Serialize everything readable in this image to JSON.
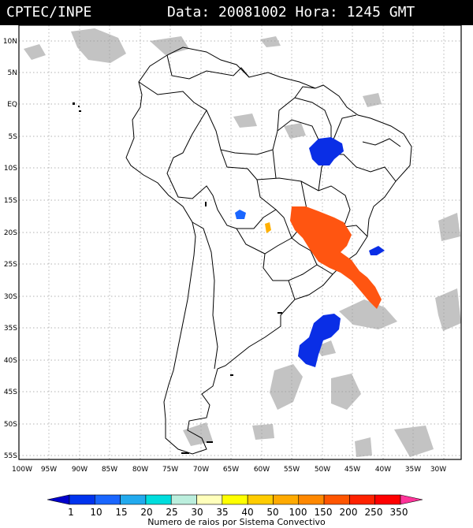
{
  "header": {
    "source": "CPTEC/INPE",
    "datetime": "Data: 20081002 Hora: 1245 GMT"
  },
  "map": {
    "lat_labels": [
      "10N",
      "5N",
      "EQ",
      "5S",
      "10S",
      "15S",
      "20S",
      "25S",
      "30S",
      "35S",
      "40S",
      "45S",
      "50S",
      "55S"
    ],
    "lon_labels": [
      "100W",
      "95W",
      "90W",
      "85W",
      "80W",
      "75W",
      "70W",
      "65W",
      "60W",
      "55W",
      "50W",
      "45W",
      "40W",
      "35W",
      "30W"
    ]
  },
  "legend": {
    "title": "Numero de raios por Sistema Convectivo",
    "ticks": [
      "1",
      "10",
      "15",
      "20",
      "25",
      "30",
      "35",
      "40",
      "50",
      "100",
      "150",
      "200",
      "250",
      "350"
    ],
    "colors": [
      "#0000cc",
      "#0033ee",
      "#1a66ff",
      "#22aaee",
      "#00dddd",
      "#bbeedd",
      "#ffffbb",
      "#ffff00",
      "#ffcc00",
      "#ffaa00",
      "#ff8800",
      "#ff5500",
      "#ff2200",
      "#ff0000",
      "#ff3399"
    ]
  },
  "colors": {
    "clouds": "#c3c3c3",
    "low_activity": "#0a2ee6",
    "high_activity": "#ff5511",
    "mid_activity": "#ffb000",
    "coastline": "#000000"
  }
}
